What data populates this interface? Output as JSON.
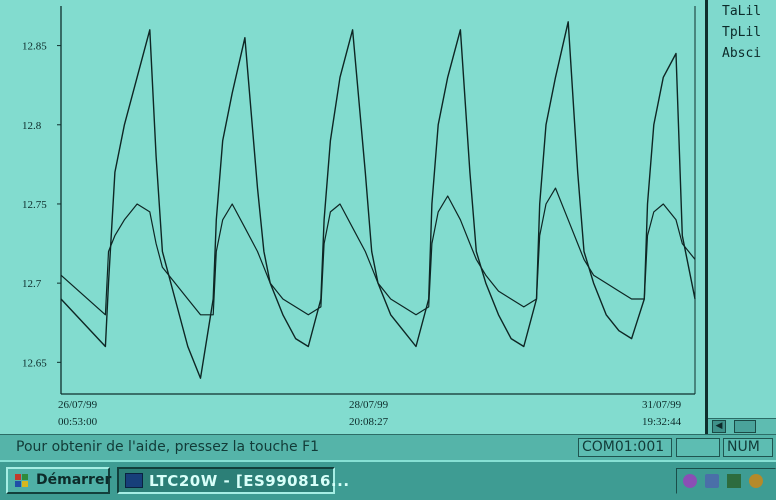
{
  "chart_data": {
    "type": "line",
    "ylim": [
      12.63,
      12.875
    ],
    "yticks": [
      "12.85",
      "12.8",
      "12.75",
      "12.7",
      "12.65"
    ],
    "ytick_values": [
      12.85,
      12.8,
      12.75,
      12.7,
      12.65
    ],
    "xlabels": [
      {
        "date": "26/07/99",
        "time": "00:53:00"
      },
      {
        "date": "28/07/99",
        "time": "20:08:27"
      },
      {
        "date": "31/07/99",
        "time": "19:32:44"
      }
    ],
    "x": [
      0,
      0.07,
      0.075,
      0.085,
      0.1,
      0.12,
      0.14,
      0.15,
      0.16,
      0.18,
      0.2,
      0.22,
      0.24,
      0.245,
      0.255,
      0.27,
      0.29,
      0.31,
      0.32,
      0.33,
      0.35,
      0.37,
      0.39,
      0.41,
      0.415,
      0.425,
      0.44,
      0.46,
      0.48,
      0.49,
      0.5,
      0.52,
      0.54,
      0.56,
      0.58,
      0.585,
      0.595,
      0.61,
      0.63,
      0.645,
      0.655,
      0.67,
      0.69,
      0.71,
      0.73,
      0.75,
      0.755,
      0.765,
      0.78,
      0.8,
      0.815,
      0.825,
      0.84,
      0.86,
      0.88,
      0.9,
      0.92,
      0.925,
      0.935,
      0.95,
      0.97,
      0.98,
      1.0
    ],
    "series": [
      {
        "values": [
          12.69,
          12.66,
          12.7,
          12.77,
          12.8,
          12.83,
          12.86,
          12.78,
          12.72,
          12.69,
          12.66,
          12.64,
          12.69,
          12.74,
          12.79,
          12.82,
          12.855,
          12.76,
          12.72,
          12.7,
          12.68,
          12.665,
          12.66,
          12.69,
          12.74,
          12.79,
          12.83,
          12.86,
          12.77,
          12.72,
          12.7,
          12.68,
          12.67,
          12.66,
          12.69,
          12.75,
          12.8,
          12.83,
          12.86,
          12.77,
          12.72,
          12.7,
          12.68,
          12.665,
          12.66,
          12.69,
          12.75,
          12.8,
          12.83,
          12.865,
          12.77,
          12.72,
          12.7,
          12.68,
          12.67,
          12.665,
          12.69,
          12.75,
          12.8,
          12.83,
          12.845,
          12.73,
          12.69
        ]
      },
      {
        "values": [
          12.705,
          12.68,
          12.72,
          12.73,
          12.74,
          12.75,
          12.745,
          12.725,
          12.71,
          12.7,
          12.69,
          12.68,
          12.68,
          12.72,
          12.74,
          12.75,
          12.735,
          12.72,
          12.71,
          12.7,
          12.69,
          12.685,
          12.68,
          12.685,
          12.725,
          12.745,
          12.75,
          12.735,
          12.72,
          12.71,
          12.7,
          12.69,
          12.685,
          12.68,
          12.685,
          12.725,
          12.745,
          12.755,
          12.74,
          12.725,
          12.715,
          12.705,
          12.695,
          12.69,
          12.685,
          12.69,
          12.73,
          12.75,
          12.76,
          12.74,
          12.725,
          12.715,
          12.705,
          12.7,
          12.695,
          12.69,
          12.69,
          12.73,
          12.745,
          12.75,
          12.74,
          12.725,
          12.715
        ]
      }
    ]
  },
  "legend": {
    "items": [
      "TaLil",
      "TpLil",
      "Absci"
    ]
  },
  "status": {
    "help_text": "Pour obtenir de l'aide, pressez la touche F1",
    "port": "COM01:001",
    "num": "NUM"
  },
  "taskbar": {
    "start_label": "Démarrer",
    "task_label": "LTC20W - [ES990816..."
  }
}
